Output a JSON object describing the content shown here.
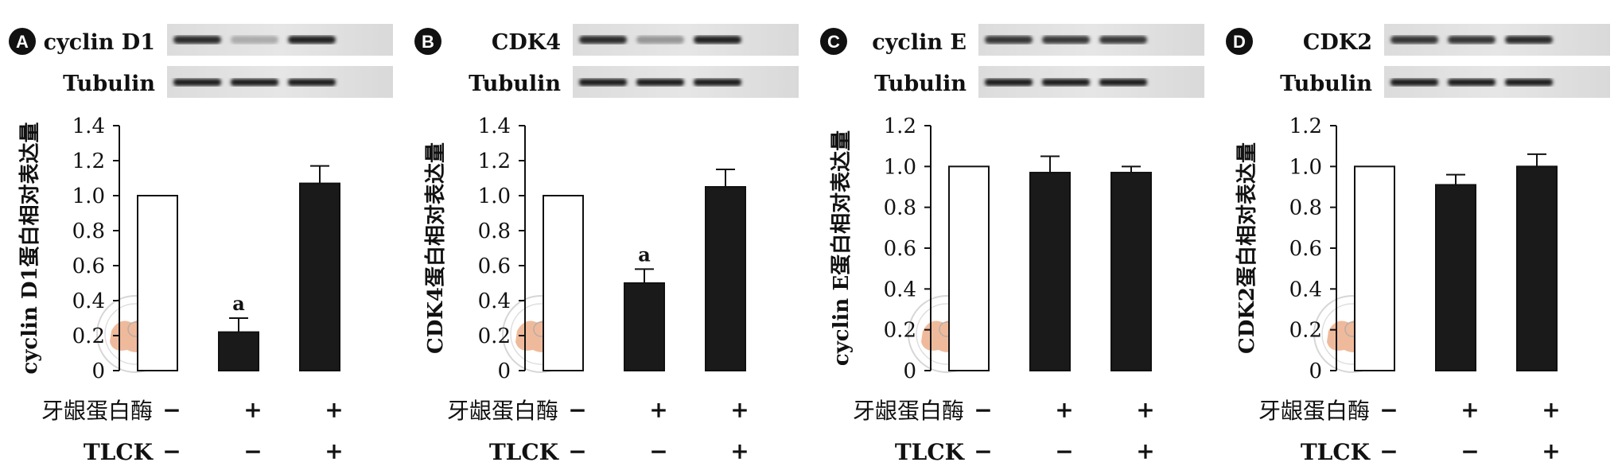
{
  "colors": {
    "ink": "#111111",
    "control_bar": "#ffffff",
    "treated_bar": "#1a1a1a",
    "watermark": "#e9a37a"
  },
  "row_labels": {
    "treatment1": "牙龈蛋白酶",
    "treatment2": "TLCK"
  },
  "conditions": [
    {
      "treatment1": "−",
      "treatment2": "−"
    },
    {
      "treatment1": "+",
      "treatment2": "−"
    },
    {
      "treatment1": "+",
      "treatment2": "+"
    }
  ],
  "loading_control": "Tubulin",
  "panels": [
    {
      "letter": "A",
      "protein": "cyclin D1",
      "blot_levels": [
        0.85,
        0.25,
        0.9
      ]
    },
    {
      "letter": "B",
      "protein": "CDK4",
      "blot_levels": [
        0.85,
        0.35,
        0.9
      ]
    },
    {
      "letter": "C",
      "protein": "cyclin E",
      "blot_levels": [
        0.8,
        0.78,
        0.78
      ]
    },
    {
      "letter": "D",
      "protein": "CDK2",
      "blot_levels": [
        0.8,
        0.8,
        0.85
      ]
    }
  ],
  "chart_data": [
    {
      "type": "bar",
      "ylabel": "cyclin D1蛋白相对表达量",
      "ylim": [
        0,
        1.4
      ],
      "yticks": [
        "0",
        "0.2",
        "0.4",
        "0.6",
        "0.8",
        "1.0",
        "1.2",
        "1.4"
      ],
      "values": [
        1.0,
        0.22,
        1.07
      ],
      "errors": [
        0,
        0.08,
        0.1
      ],
      "annotations": [
        "",
        "a",
        ""
      ]
    },
    {
      "type": "bar",
      "ylabel": "CDK4蛋白相对表达量",
      "ylim": [
        0,
        1.4
      ],
      "yticks": [
        "0",
        "0.2",
        "0.4",
        "0.6",
        "0.8",
        "1.0",
        "1.2",
        "1.4"
      ],
      "values": [
        1.0,
        0.5,
        1.05
      ],
      "errors": [
        0,
        0.08,
        0.1
      ],
      "annotations": [
        "",
        "a",
        ""
      ]
    },
    {
      "type": "bar",
      "ylabel": "cyclin E蛋白相对表达量",
      "ylim": [
        0,
        1.2
      ],
      "yticks": [
        "0",
        "0.2",
        "0.4",
        "0.6",
        "0.8",
        "1.0",
        "1.2"
      ],
      "values": [
        1.0,
        0.97,
        0.97
      ],
      "errors": [
        0,
        0.08,
        0.03
      ],
      "annotations": [
        "",
        "",
        ""
      ]
    },
    {
      "type": "bar",
      "ylabel": "CDK2蛋白相对表达量",
      "ylim": [
        0,
        1.2
      ],
      "yticks": [
        "0",
        "0.2",
        "0.4",
        "0.6",
        "0.8",
        "1.0",
        "1.2"
      ],
      "values": [
        1.0,
        0.91,
        1.0
      ],
      "errors": [
        0,
        0.05,
        0.06
      ],
      "annotations": [
        "",
        "",
        ""
      ]
    }
  ]
}
